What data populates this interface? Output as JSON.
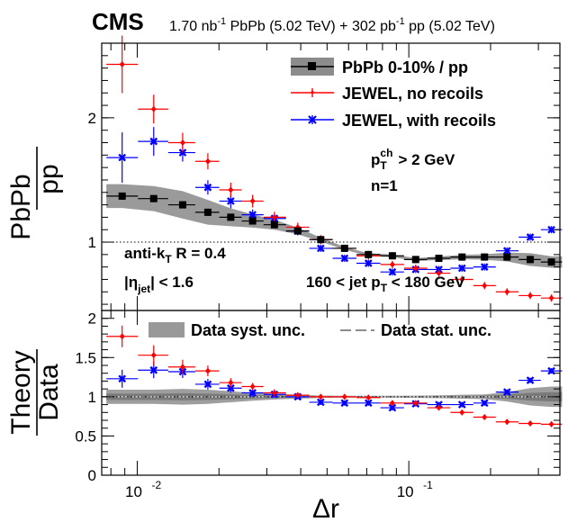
{
  "header": {
    "experiment": "CMS",
    "lumi_pbpb_value": "1.70 nb",
    "lumi_pbpb_exp": "-1",
    "lumi_pbpb_rest": " PbPb (5.02 TeV) + 302 pb",
    "lumi_pp_exp": "-1",
    "lumi_pp_rest": " pp (5.02 TeV)"
  },
  "colors": {
    "data": "#000000",
    "band": "#888888",
    "band_main": "#9a9a9a",
    "no_recoils": "#ff0000",
    "with_recoils": "#0000ff"
  },
  "annotations": {
    "pt_cut_pre": "p",
    "pt_cut_sup": "ch",
    "pt_cut_sub": "T",
    "pt_cut_post": " > 2 GeV",
    "n": "n=1",
    "algo_pre": "anti-k",
    "algo_sub": "T",
    "algo_post": " R = 0.4",
    "eta_pre": "|η",
    "eta_sub": "jet",
    "eta_post": "| < 1.6",
    "jetpt_pre": "160 < jet p",
    "jetpt_sub": "T",
    "jetpt_post": " < 180 GeV"
  },
  "legend_top": {
    "data": "PbPb 0-10% / pp",
    "no_recoils": "JEWEL, no recoils",
    "with_recoils": "JEWEL, with recoils"
  },
  "legend_bottom": {
    "syst": "Data syst. unc.",
    "stat": "Data stat. unc."
  },
  "chart_data": [
    {
      "type": "scatter",
      "panel": "top",
      "ylabel_num": "PbPb",
      "ylabel_den": "pp",
      "yticks": [
        "1",
        "2"
      ],
      "ylim": [
        0.45,
        2.6
      ],
      "xlim": [
        0.0074,
        0.36
      ],
      "xscale": "log",
      "series": [
        {
          "name": "PbPb 0-10% / pp",
          "x": [
            0.0088,
            0.0115,
            0.0147,
            0.0182,
            0.0221,
            0.0266,
            0.032,
            0.039,
            0.0474,
            0.058,
            0.071,
            0.087,
            0.106,
            0.129,
            0.157,
            0.19,
            0.23,
            0.28,
            0.335
          ],
          "y": [
            1.37,
            1.35,
            1.3,
            1.24,
            1.2,
            1.17,
            1.14,
            1.09,
            1.02,
            0.95,
            0.9,
            0.89,
            0.86,
            0.87,
            0.88,
            0.88,
            0.88,
            0.86,
            0.84
          ]
        },
        {
          "name": "JEWEL, no recoils",
          "x": [
            0.0088,
            0.0115,
            0.0147,
            0.0182,
            0.0221,
            0.0266,
            0.032,
            0.039,
            0.0474,
            0.058,
            0.071,
            0.087,
            0.106,
            0.129,
            0.157,
            0.19,
            0.23,
            0.28,
            0.335
          ],
          "y": [
            2.43,
            2.07,
            1.8,
            1.65,
            1.42,
            1.33,
            1.2,
            1.12,
            1.02,
            0.95,
            0.89,
            0.82,
            0.79,
            0.75,
            0.7,
            0.65,
            0.6,
            0.57,
            0.55
          ]
        },
        {
          "name": "JEWEL, with recoils",
          "x": [
            0.0088,
            0.0115,
            0.0147,
            0.0182,
            0.0221,
            0.0266,
            0.032,
            0.039,
            0.0474,
            0.058,
            0.071,
            0.087,
            0.106,
            0.129,
            0.157,
            0.19,
            0.23,
            0.28,
            0.335
          ],
          "y": [
            1.68,
            1.81,
            1.72,
            1.44,
            1.33,
            1.22,
            1.19,
            1.09,
            0.95,
            0.87,
            0.83,
            0.76,
            0.78,
            0.78,
            0.79,
            0.8,
            0.93,
            1.04,
            1.1
          ]
        }
      ]
    },
    {
      "type": "scatter",
      "panel": "bottom",
      "xlabel": "Δr",
      "ylabel_num": "Theory",
      "ylabel_den": "Data",
      "yticks": [
        "0",
        "0.5",
        "1",
        "1.5",
        "2"
      ],
      "xticks": [
        "10",
        "10"
      ],
      "xtick_exps": [
        "-2",
        "-1"
      ],
      "ylim": [
        0,
        2.1
      ],
      "xlim": [
        0.0074,
        0.36
      ],
      "xscale": "log",
      "series": [
        {
          "name": "JEWEL, no recoils",
          "x": [
            0.0088,
            0.0115,
            0.0147,
            0.0182,
            0.0221,
            0.0266,
            0.032,
            0.039,
            0.0474,
            0.058,
            0.071,
            0.087,
            0.106,
            0.129,
            0.157,
            0.19,
            0.23,
            0.28,
            0.335
          ],
          "y": [
            1.77,
            1.53,
            1.38,
            1.33,
            1.18,
            1.13,
            1.05,
            1.02,
            1.0,
            1.0,
            0.99,
            0.92,
            0.92,
            0.86,
            0.8,
            0.74,
            0.68,
            0.66,
            0.65
          ]
        },
        {
          "name": "JEWEL, with recoils",
          "x": [
            0.0088,
            0.0115,
            0.0147,
            0.0182,
            0.0221,
            0.0266,
            0.032,
            0.039,
            0.0474,
            0.058,
            0.071,
            0.087,
            0.106,
            0.129,
            0.157,
            0.19,
            0.23,
            0.28,
            0.335
          ],
          "y": [
            1.23,
            1.34,
            1.32,
            1.16,
            1.11,
            1.05,
            1.03,
            1.0,
            0.93,
            0.92,
            0.92,
            0.86,
            0.91,
            0.9,
            0.9,
            0.92,
            1.06,
            1.21,
            1.33
          ]
        }
      ]
    }
  ]
}
